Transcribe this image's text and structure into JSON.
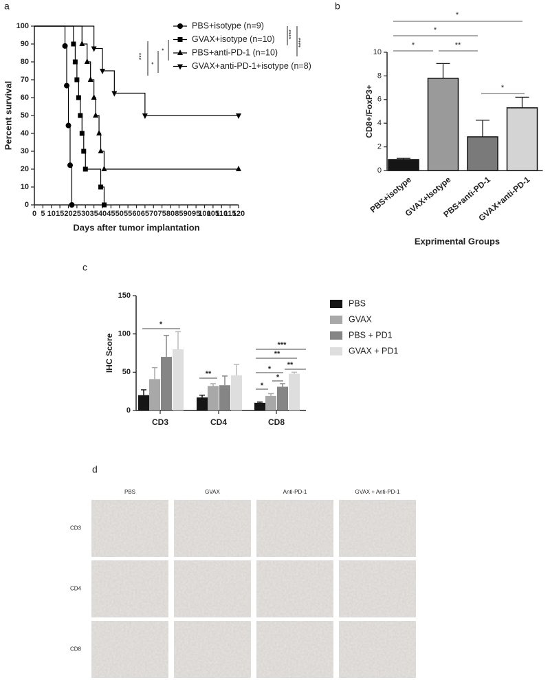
{
  "chart_data": [
    {
      "panel": "a",
      "type": "line",
      "step": true,
      "xlabel": "Days after tumor implantation",
      "ylabel": "Percent survival",
      "xlim": [
        0,
        120
      ],
      "ylim": [
        0,
        100
      ],
      "xticks": [
        0,
        5,
        10,
        15,
        20,
        25,
        30,
        35,
        40,
        45,
        50,
        55,
        60,
        65,
        70,
        75,
        80,
        85,
        90,
        95,
        100,
        105,
        110,
        115,
        120
      ],
      "yticks": [
        0,
        10,
        20,
        30,
        40,
        50,
        60,
        70,
        80,
        90,
        100
      ],
      "series": [
        {
          "name": "PBS+isotype (n=9)",
          "color": "#000000",
          "marker": "circle",
          "x": [
            0,
            18,
            19,
            20,
            21,
            22
          ],
          "values": [
            100,
            88.9,
            66.7,
            44.4,
            22.2,
            0
          ]
        },
        {
          "name": "GVAX+isotype (n=10)",
          "color": "#000000",
          "marker": "square",
          "x": [
            0,
            23,
            24,
            25,
            26,
            27,
            28,
            29,
            30,
            39,
            41
          ],
          "values": [
            100,
            90,
            80,
            70,
            60,
            50,
            40,
            30,
            20,
            10,
            0
          ]
        },
        {
          "name": "PBS+anti-PD-1 (n=10)",
          "color": "#000000",
          "marker": "triangle-up",
          "x": [
            0,
            28,
            31,
            33,
            35,
            36,
            38,
            39,
            41,
            120
          ],
          "values": [
            100,
            90,
            80,
            70,
            60,
            50,
            40,
            30,
            20,
            20
          ]
        },
        {
          "name": "GVAX+anti-PD-1+isotype (n=8)",
          "color": "#000000",
          "marker": "triangle-down",
          "x": [
            0,
            35,
            40,
            47,
            65,
            120
          ],
          "values": [
            100,
            87.5,
            75,
            62.5,
            50,
            50
          ]
        }
      ],
      "annotations": [
        "***",
        "*",
        "*",
        "****",
        "****"
      ]
    },
    {
      "panel": "b",
      "type": "bar",
      "xlabel": "Exprimental Groups",
      "ylabel": "CD8+/FoxP3+",
      "categories": [
        "PBS+isotype",
        "GVAX+Isotype",
        "PBS+anti-PD-1",
        "GVAX+anti-PD-1"
      ],
      "values": [
        0.93,
        7.8,
        2.85,
        5.3
      ],
      "errors": [
        0.1,
        1.25,
        1.4,
        0.9
      ],
      "colors": [
        "#151515",
        "#9a9a9a",
        "#7a7a7a",
        "#d4d4d4"
      ],
      "ylim": [
        0,
        10
      ],
      "yticks": [
        0,
        2,
        4,
        6,
        8,
        10
      ],
      "annotations": [
        "*",
        "*",
        "*",
        "**",
        "*"
      ]
    },
    {
      "panel": "c",
      "type": "grouped_bar",
      "ylabel": "IHC Score",
      "categories": [
        "CD3",
        "CD4",
        "CD8"
      ],
      "series": [
        {
          "name": "PBS",
          "color": "#151515",
          "values": [
            20,
            17,
            10
          ],
          "errors": [
            7,
            3,
            1
          ]
        },
        {
          "name": "GVAX",
          "color": "#a8a8a8",
          "values": [
            41,
            32,
            19
          ],
          "errors": [
            15,
            3,
            3
          ]
        },
        {
          "name": "PBS + PD1",
          "color": "#858585",
          "values": [
            70,
            33,
            31
          ],
          "errors": [
            28,
            12,
            4
          ]
        },
        {
          "name": "GVAX + PD1",
          "color": "#dedede",
          "values": [
            80,
            46,
            48
          ],
          "errors": [
            23,
            14,
            2
          ]
        }
      ],
      "ylim": [
        0,
        150
      ],
      "yticks": [
        0,
        50,
        100,
        150
      ],
      "annotations": [
        "*",
        "**",
        "***",
        "**",
        "**",
        "*",
        "*",
        "*"
      ]
    }
  ],
  "image_grid": {
    "panel": "d",
    "columns": [
      "PBS",
      "GVAX",
      "Anti-PD-1",
      "GVAX + Anti-PD-1"
    ],
    "rows": [
      "CD3",
      "CD4",
      "CD8"
    ]
  }
}
